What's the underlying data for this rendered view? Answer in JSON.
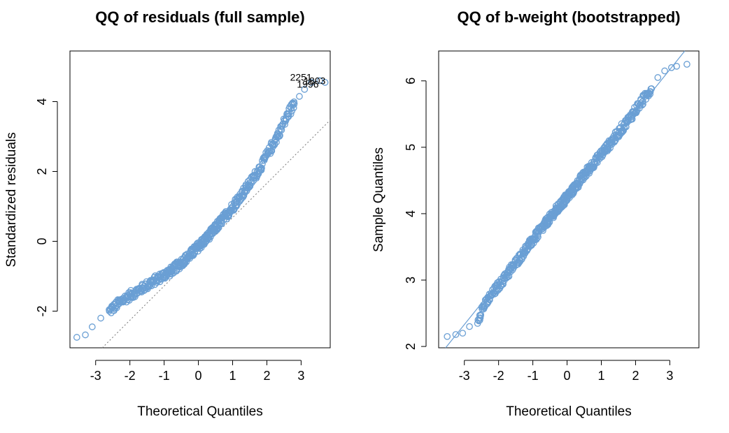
{
  "colors": {
    "points": "#6A9FD4",
    "left_reference_line": "#777777",
    "right_reference_line": "#6A9FD4"
  },
  "chart_data": [
    {
      "type": "scatter",
      "subtype": "qq-plot",
      "title": "QQ of residuals (full sample)",
      "xlabel": "Theoretical Quantiles",
      "ylabel": "Standardized residuals",
      "xlim": [
        -3.75,
        3.85
      ],
      "ylim": [
        -3.05,
        5.45
      ],
      "x_ticks": [
        "-3",
        "-2",
        "-1",
        "0",
        "1",
        "2",
        "3"
      ],
      "y_ticks": [
        "-2",
        "0",
        "2",
        "4"
      ],
      "grid": false,
      "reference_line": {
        "style": "dotted",
        "intercept": -0.3,
        "slope": 0.98
      },
      "quantile_curve": [
        [
          -3.55,
          -2.75
        ],
        [
          -3.3,
          -2.68
        ],
        [
          -3.1,
          -2.45
        ],
        [
          -2.85,
          -2.2
        ],
        [
          -2.6,
          -2.0
        ],
        [
          -2.3,
          -1.75
        ],
        [
          -2.0,
          -1.55
        ],
        [
          -1.7,
          -1.38
        ],
        [
          -1.4,
          -1.2
        ],
        [
          -1.1,
          -1.02
        ],
        [
          -0.8,
          -0.85
        ],
        [
          -0.5,
          -0.62
        ],
        [
          -0.2,
          -0.35
        ],
        [
          0.0,
          -0.15
        ],
        [
          0.3,
          0.15
        ],
        [
          0.6,
          0.5
        ],
        [
          0.9,
          0.85
        ],
        [
          1.2,
          1.25
        ],
        [
          1.5,
          1.65
        ],
        [
          1.8,
          2.1
        ],
        [
          2.05,
          2.55
        ],
        [
          2.3,
          3.0
        ],
        [
          2.5,
          3.4
        ],
        [
          2.65,
          3.7
        ],
        [
          2.8,
          3.95
        ],
        [
          2.95,
          4.15
        ],
        [
          3.1,
          4.35
        ],
        [
          3.3,
          4.55
        ],
        [
          3.55,
          4.6
        ],
        [
          3.7,
          4.55
        ]
      ],
      "annotations": [
        {
          "text": "2251",
          "x": 3.2,
          "y": 4.6
        },
        {
          "text": "1803",
          "x": 3.6,
          "y": 4.5
        },
        {
          "text": "1996",
          "x": 3.4,
          "y": 4.4
        }
      ]
    },
    {
      "type": "scatter",
      "subtype": "qq-plot",
      "title": "QQ of b-weight (bootstrapped)",
      "xlabel": "Theoretical Quantiles",
      "ylabel": "Sample Quantiles",
      "xlim": [
        -3.75,
        3.85
      ],
      "ylim": [
        1.98,
        6.45
      ],
      "x_ticks": [
        "-3",
        "-2",
        "-1",
        "0",
        "1",
        "2",
        "3"
      ],
      "y_ticks": [
        "2",
        "3",
        "4",
        "5",
        "6"
      ],
      "grid": false,
      "reference_line": {
        "style": "solid",
        "intercept": 4.25,
        "slope": 0.64
      },
      "quantile_curve": [
        [
          -3.5,
          2.15
        ],
        [
          -3.25,
          2.18
        ],
        [
          -3.05,
          2.2
        ],
        [
          -2.85,
          2.3
        ],
        [
          -2.6,
          2.4
        ],
        [
          -2.5,
          2.55
        ],
        [
          -2.2,
          2.78
        ],
        [
          -1.8,
          3.05
        ],
        [
          -1.4,
          3.33
        ],
        [
          -1.0,
          3.6
        ],
        [
          -0.6,
          3.87
        ],
        [
          -0.2,
          4.12
        ],
        [
          0.2,
          4.38
        ],
        [
          0.6,
          4.65
        ],
        [
          1.0,
          4.9
        ],
        [
          1.4,
          5.15
        ],
        [
          1.8,
          5.42
        ],
        [
          2.2,
          5.7
        ],
        [
          2.45,
          5.88
        ],
        [
          2.65,
          6.05
        ],
        [
          2.85,
          6.15
        ],
        [
          3.05,
          6.2
        ],
        [
          3.2,
          6.22
        ],
        [
          3.5,
          6.25
        ]
      ],
      "annotations": []
    }
  ]
}
